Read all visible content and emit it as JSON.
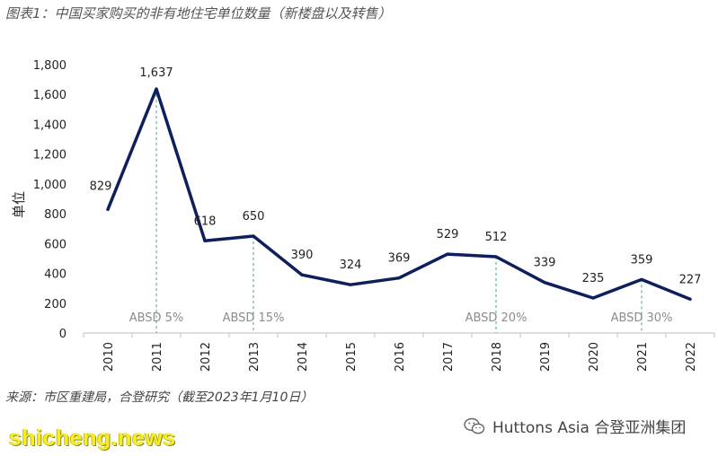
{
  "title": "图表1：中国买家购买的非有地住宅单位数量（新楼盘以及转售）",
  "source": "来源：市区重建局，合登研究（截至2023年1月10日）",
  "watermark": "shicheng.news",
  "brand": {
    "text": "Huttons Asia 合登亚洲集团",
    "icon": "wechat-icon"
  },
  "chart_data": {
    "type": "line",
    "title": "图表1：中国买家购买的非有地住宅单位数量（新楼盘以及转售）",
    "xlabel": "",
    "ylabel": "单位",
    "categories": [
      "2010",
      "2011",
      "2012",
      "2013",
      "2014",
      "2015",
      "2016",
      "2017",
      "2018",
      "2019",
      "2020",
      "2021",
      "2022"
    ],
    "values": [
      829,
      1637,
      618,
      650,
      390,
      324,
      369,
      529,
      512,
      339,
      235,
      359,
      227
    ],
    "data_labels": [
      "829",
      "1,637",
      "618",
      "650",
      "390",
      "324",
      "369",
      "529",
      "512",
      "339",
      "235",
      "359",
      "227"
    ],
    "ylim": [
      0,
      1800
    ],
    "yticks": [
      0,
      200,
      400,
      600,
      800,
      1000,
      1200,
      1400,
      1600,
      1800
    ],
    "ytick_labels": [
      "0",
      "200",
      "400",
      "600",
      "800",
      "1,000",
      "1,200",
      "1,400",
      "1,600",
      "1,800"
    ],
    "grid": false,
    "line_color": "#0d1f5c",
    "marker_line_color": "#3aa88a",
    "annotations": [
      {
        "x": "2011",
        "label": "ABSD 5%"
      },
      {
        "x": "2013",
        "label": "ABSD 15%"
      },
      {
        "x": "2018",
        "label": "ABSD 20%"
      },
      {
        "x": "2021",
        "label": "ABSD 30%"
      }
    ]
  }
}
